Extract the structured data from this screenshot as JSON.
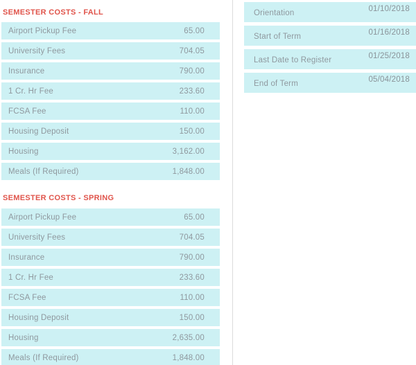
{
  "theme": {
    "row_background": "#cdf1f4",
    "section_title_color": "#e0544b",
    "text_color": "#8f989e",
    "divider_color": "#dcdcdc"
  },
  "fall": {
    "title": "SEMESTER COSTS - FALL",
    "rows": [
      {
        "label": "Airport Pickup Fee",
        "value": "65.00"
      },
      {
        "label": "University Fees",
        "value": "704.05"
      },
      {
        "label": "Insurance",
        "value": "790.00"
      },
      {
        "label": "1 Cr. Hr Fee",
        "value": "233.60"
      },
      {
        "label": "FCSA Fee",
        "value": "110.00"
      },
      {
        "label": "Housing Deposit",
        "value": "150.00"
      },
      {
        "label": "Housing",
        "value": "3,162.00"
      },
      {
        "label": "Meals (If Required)",
        "value": "1,848.00"
      }
    ]
  },
  "spring": {
    "title": "SEMESTER COSTS - SPRING",
    "rows": [
      {
        "label": "Airport Pickup Fee",
        "value": "65.00"
      },
      {
        "label": "University Fees",
        "value": "704.05"
      },
      {
        "label": "Insurance",
        "value": "790.00"
      },
      {
        "label": "1 Cr. Hr Fee",
        "value": "233.60"
      },
      {
        "label": "FCSA Fee",
        "value": "110.00"
      },
      {
        "label": "Housing Deposit",
        "value": "150.00"
      },
      {
        "label": "Housing",
        "value": "2,635.00"
      },
      {
        "label": "Meals (If Required)",
        "value": "1,848.00"
      }
    ]
  },
  "dates": {
    "rows": [
      {
        "label": "Orientation",
        "value": "01/10/2018"
      },
      {
        "label": "Start of Term",
        "value": "01/16/2018"
      },
      {
        "label": "Last Date to Register",
        "value": "01/25/2018"
      },
      {
        "label": "End of Term",
        "value": "05/04/2018"
      }
    ]
  }
}
